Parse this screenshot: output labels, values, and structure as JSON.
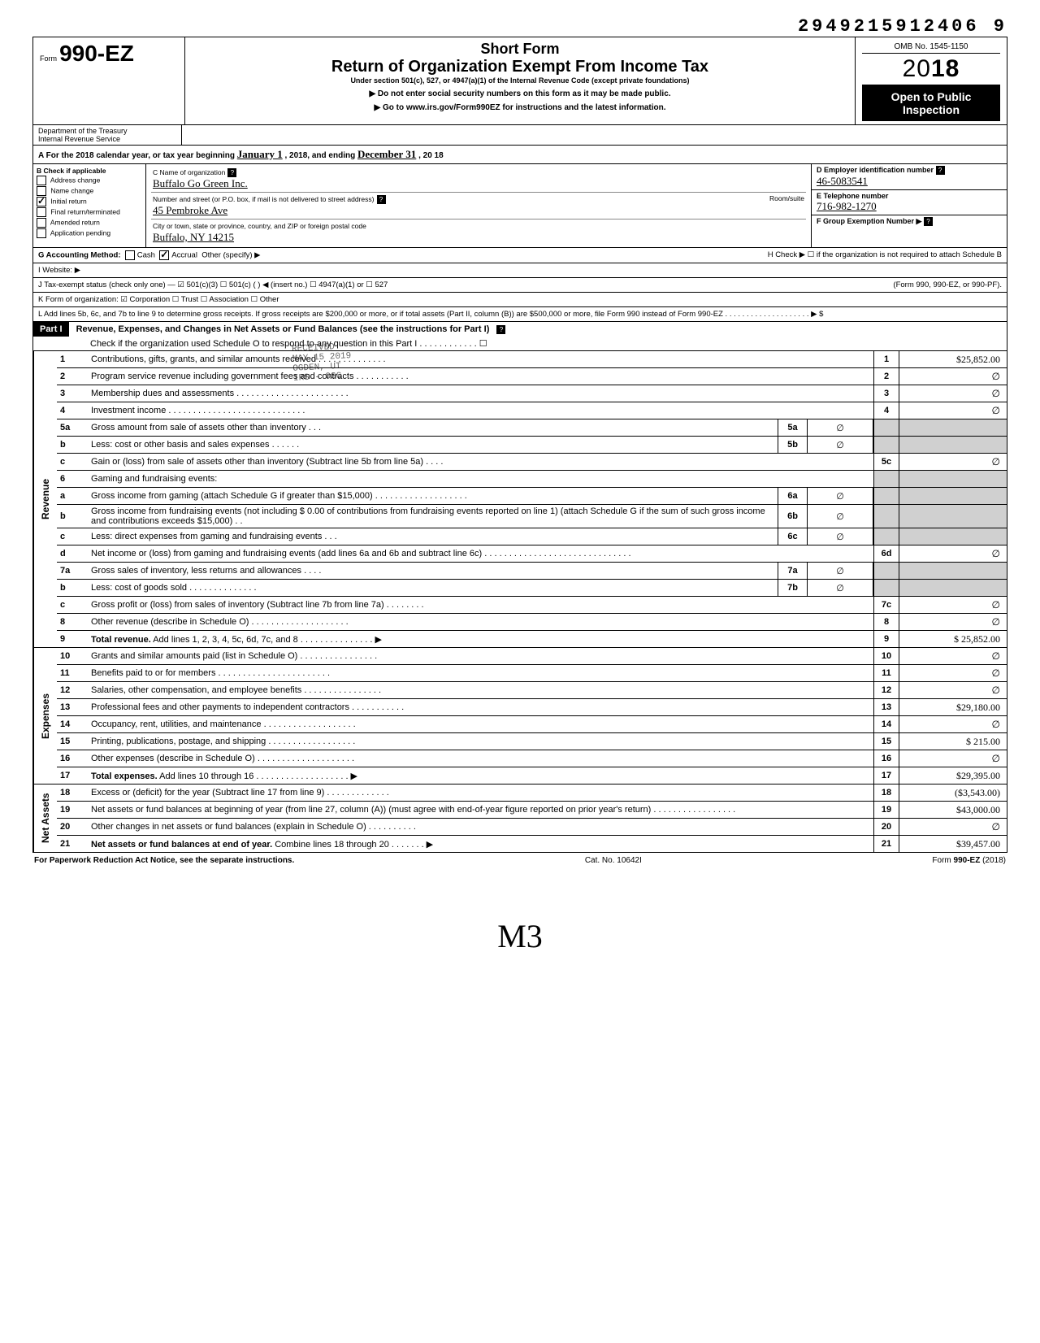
{
  "top_number": "2949215912406 9",
  "header": {
    "form_prefix": "Form",
    "form_number": "990-EZ",
    "title1": "Short Form",
    "title2": "Return of Organization Exempt From Income Tax",
    "subtitle": "Under section 501(c), 527, or 4947(a)(1) of the Internal Revenue Code (except private foundations)",
    "note1": "▶ Do not enter social security numbers on this form as it may be made public.",
    "note2": "▶ Go to www.irs.gov/Form990EZ for instructions and the latest information.",
    "omb": "OMB No. 1545-1150",
    "year_prefix": "20",
    "year_bold": "18",
    "open_public": "Open to Public Inspection",
    "dept": "Department of the Treasury\nInternal Revenue Service"
  },
  "row_a": {
    "text_a": "A  For the 2018 calendar year, or tax year beginning",
    "begin": "January 1",
    "mid": ", 2018, and ending",
    "end": "December 31",
    "year_end": ", 20 18"
  },
  "col_b": {
    "header": "B  Check if applicable",
    "opts": [
      "Address change",
      "Name change",
      "Initial return",
      "Final return/terminated",
      "Amended return",
      "Application pending"
    ],
    "checked_index": 2
  },
  "col_c": {
    "name_label": "C  Name of organization",
    "name": "Buffalo Go Green Inc.",
    "addr_label": "Number and street (or P.O. box, if mail is not delivered to street address)",
    "room_label": "Room/suite",
    "addr": "45 Pembroke Ave",
    "city_label": "City or town, state or province, country, and ZIP or foreign postal code",
    "city": "Buffalo, NY  14215"
  },
  "col_de": {
    "d_label": "D Employer identification number",
    "d_val": "46-5083541",
    "e_label": "E Telephone number",
    "e_val": "716-982-1270",
    "f_label": "F Group Exemption Number ▶"
  },
  "rows_gl": {
    "g": "G  Accounting Method:",
    "g_opts": "Cash   Accrual   Other (specify) ▶",
    "h": "H  Check ▶ ☐ if the organization is not required to attach Schedule B",
    "i": "I   Website: ▶",
    "j": "J  Tax-exempt status (check only one) —  ☑ 501(c)(3)   ☐ 501(c) (    ) ◀ (insert no.)  ☐ 4947(a)(1) or  ☐ 527",
    "j_right": "(Form 990, 990-EZ, or 990-PF).",
    "k": "K  Form of organization:   ☑ Corporation   ☐ Trust   ☐ Association   ☐ Other",
    "l": "L  Add lines 5b, 6c, and 7b to line 9 to determine gross receipts. If gross receipts are $200,000 or more, or if total assets (Part II, column (B)) are $500,000 or more, file Form 990 instead of Form 990-EZ . . . . . . . . . . . . . . . . . . . . ▶  $"
  },
  "part1": {
    "label": "Part I",
    "title": "Revenue, Expenses, and Changes in Net Assets or Fund Balances (see the instructions for Part I)",
    "check_line": "Check if the organization used Schedule O to respond to any question in this Part I . . . . . . . . . . . . ☐"
  },
  "revenue_label": "Revenue",
  "expenses_label": "Expenses",
  "netassets_label": "Net Assets",
  "lines": {
    "1": {
      "n": "1",
      "d": "Contributions, gifts, grants, and similar amounts received . . . . . . . . . . . . . .",
      "box": "1",
      "amt": "$25,852.00"
    },
    "2": {
      "n": "2",
      "d": "Program service revenue including government fees and contracts . . . . . . . . . . .",
      "box": "2",
      "amt": "∅"
    },
    "3": {
      "n": "3",
      "d": "Membership dues and assessments . . . . . . . . . . . . . . . . . . . . . . .",
      "box": "3",
      "amt": "∅"
    },
    "4": {
      "n": "4",
      "d": "Investment income . . . . . . . . . . . . . . . . . . . . . . . . . . . .",
      "box": "4",
      "amt": "∅"
    },
    "5a": {
      "n": "5a",
      "d": "Gross amount from sale of assets other than inventory . . .",
      "mb": "5a",
      "mv": "∅"
    },
    "5b": {
      "n": "b",
      "d": "Less: cost or other basis and sales expenses . . . . . .",
      "mb": "5b",
      "mv": "∅"
    },
    "5c": {
      "n": "c",
      "d": "Gain or (loss) from sale of assets other than inventory (Subtract line 5b from line 5a) . . . .",
      "box": "5c",
      "amt": "∅"
    },
    "6": {
      "n": "6",
      "d": "Gaming and fundraising events:"
    },
    "6a": {
      "n": "a",
      "d": "Gross income from gaming (attach Schedule G if greater than $15,000) . . . . . . . . . . . . . . . . . . .",
      "mb": "6a",
      "mv": "∅"
    },
    "6b": {
      "n": "b",
      "d": "Gross income from fundraising events (not including  $  0.00  of contributions from fundraising events reported on line 1) (attach Schedule G if the sum of such gross income and contributions exceeds $15,000) . .",
      "mb": "6b",
      "mv": "∅"
    },
    "6c": {
      "n": "c",
      "d": "Less: direct expenses from gaming and fundraising events . . .",
      "mb": "6c",
      "mv": "∅"
    },
    "6d": {
      "n": "d",
      "d": "Net income or (loss) from gaming and fundraising events (add lines 6a and 6b and subtract line 6c) . . . . . . . . . . . . . . . . . . . . . . . . . . . . . .",
      "box": "6d",
      "amt": "∅"
    },
    "7a": {
      "n": "7a",
      "d": "Gross sales of inventory, less returns and allowances . . . .",
      "mb": "7a",
      "mv": "∅"
    },
    "7b": {
      "n": "b",
      "d": "Less: cost of goods sold . . . . . . . . . . . . . .",
      "mb": "7b",
      "mv": "∅"
    },
    "7c": {
      "n": "c",
      "d": "Gross profit or (loss) from sales of inventory (Subtract line 7b from line 7a) . . . . . . . .",
      "box": "7c",
      "amt": "∅"
    },
    "8": {
      "n": "8",
      "d": "Other revenue (describe in Schedule O) . . . . . . . . . . . . . . . . . . . .",
      "box": "8",
      "amt": "∅"
    },
    "9": {
      "n": "9",
      "d": "Total revenue. Add lines 1, 2, 3, 4, 5c, 6d, 7c, and 8 . . . . . . . . . . . . . . . ▶",
      "box": "9",
      "amt": "$ 25,852.00",
      "bold": true
    },
    "10": {
      "n": "10",
      "d": "Grants and similar amounts paid (list in Schedule O) . . . . . . . . . . . . . . . .",
      "box": "10",
      "amt": "∅"
    },
    "11": {
      "n": "11",
      "d": "Benefits paid to or for members . . . . . . . . . . . . . . . . . . . . . . .",
      "box": "11",
      "amt": "∅"
    },
    "12": {
      "n": "12",
      "d": "Salaries, other compensation, and employee benefits . . . . . . . . . . . . . . . .",
      "box": "12",
      "amt": "∅"
    },
    "13": {
      "n": "13",
      "d": "Professional fees and other payments to independent contractors . . . . . . . . . . .",
      "box": "13",
      "amt": "$29,180.00"
    },
    "14": {
      "n": "14",
      "d": "Occupancy, rent, utilities, and maintenance . . . . . . . . . . . . . . . . . . .",
      "box": "14",
      "amt": "∅"
    },
    "15": {
      "n": "15",
      "d": "Printing, publications, postage, and shipping . . . . . . . . . . . . . . . . . .",
      "box": "15",
      "amt": "$ 215.00"
    },
    "16": {
      "n": "16",
      "d": "Other expenses (describe in Schedule O) . . . . . . . . . . . . . . . . . . . .",
      "box": "16",
      "amt": "∅"
    },
    "17": {
      "n": "17",
      "d": "Total expenses. Add lines 10 through 16 . . . . . . . . . . . . . . . . . . . ▶",
      "box": "17",
      "amt": "$29,395.00",
      "bold": true
    },
    "18": {
      "n": "18",
      "d": "Excess or (deficit) for the year (Subtract line 17 from line 9) . . . . . . . . . . . . .",
      "box": "18",
      "amt": "($3,543.00)"
    },
    "19": {
      "n": "19",
      "d": "Net assets or fund balances at beginning of year (from line 27, column (A)) (must agree with end-of-year figure reported on prior year's return) . . . . . . . . . . . . . . . . .",
      "box": "19",
      "amt": "$43,000.00"
    },
    "20": {
      "n": "20",
      "d": "Other changes in net assets or fund balances (explain in Schedule O) . . . . . . . . . .",
      "box": "20",
      "amt": "∅"
    },
    "21": {
      "n": "21",
      "d": "Net assets or fund balances at end of year. Combine lines 18 through 20 . . . . . . . ▶",
      "box": "21",
      "amt": "$39,457.00",
      "bold": true
    }
  },
  "stamp": {
    "l1": "RECEIVED",
    "l2": "MAY 15 2019",
    "l3": "OGDEN, UT",
    "l4": "IRS - OSC"
  },
  "footer": {
    "left": "For Paperwork Reduction Act Notice, see the separate instructions.",
    "mid": "Cat. No. 10642I",
    "right": "Form 990-EZ (2018)"
  },
  "bottom_scrawl": "M3"
}
